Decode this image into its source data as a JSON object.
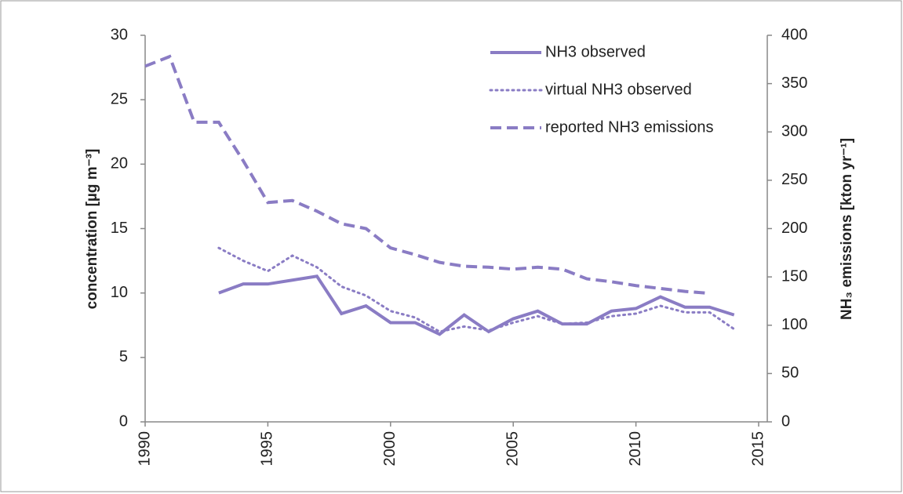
{
  "chart_data": {
    "type": "line",
    "x": [
      1990,
      1991,
      1992,
      1993,
      1994,
      1995,
      1996,
      1997,
      1998,
      1999,
      2000,
      2001,
      2002,
      2003,
      2004,
      2005,
      2006,
      2007,
      2008,
      2009,
      2010,
      2011,
      2012,
      2013,
      2014
    ],
    "xlim": [
      1990,
      2015
    ],
    "xticks": [
      1990,
      1995,
      2000,
      2005,
      2010,
      2015
    ],
    "ylabel": "concentration [µg m⁻³]",
    "ylim": [
      0,
      30
    ],
    "yticks": [
      0,
      5,
      10,
      15,
      20,
      25,
      30
    ],
    "y2label": "NH₃ emissions [kton yr⁻¹]",
    "y2lim": [
      0,
      400
    ],
    "y2ticks": [
      0,
      50,
      100,
      150,
      200,
      250,
      300,
      350,
      400
    ],
    "legend": "upper right",
    "series": [
      {
        "name": "NH3 observed",
        "color": "#8a7cc4",
        "line_style": "solid",
        "values": [
          null,
          null,
          null,
          10.0,
          10.7,
          10.7,
          11.0,
          11.3,
          8.4,
          9.0,
          7.7,
          7.7,
          6.8,
          8.3,
          7.0,
          8.0,
          8.6,
          7.6,
          7.6,
          8.6,
          8.8,
          9.7,
          8.9,
          8.9,
          8.3
        ]
      },
      {
        "name": "virtual NH3 observed",
        "color": "#8a7cc4",
        "line_style": "dotted",
        "values": [
          null,
          null,
          null,
          13.5,
          12.5,
          11.7,
          12.9,
          12.0,
          10.5,
          9.8,
          8.6,
          8.1,
          7.0,
          7.4,
          7.1,
          7.7,
          8.2,
          7.6,
          7.7,
          8.2,
          8.4,
          9.0,
          8.5,
          8.5,
          7.2
        ]
      },
      {
        "name": "reported NH3 emissions",
        "color": "#8a7cc4",
        "line_style": "dashed",
        "axis": "y2",
        "values": [
          368,
          378,
          310,
          310,
          270,
          227,
          229,
          218,
          205,
          200,
          180,
          173,
          165,
          161,
          160,
          158,
          160,
          158,
          148,
          145,
          141,
          138,
          135,
          133,
          null
        ]
      }
    ]
  }
}
